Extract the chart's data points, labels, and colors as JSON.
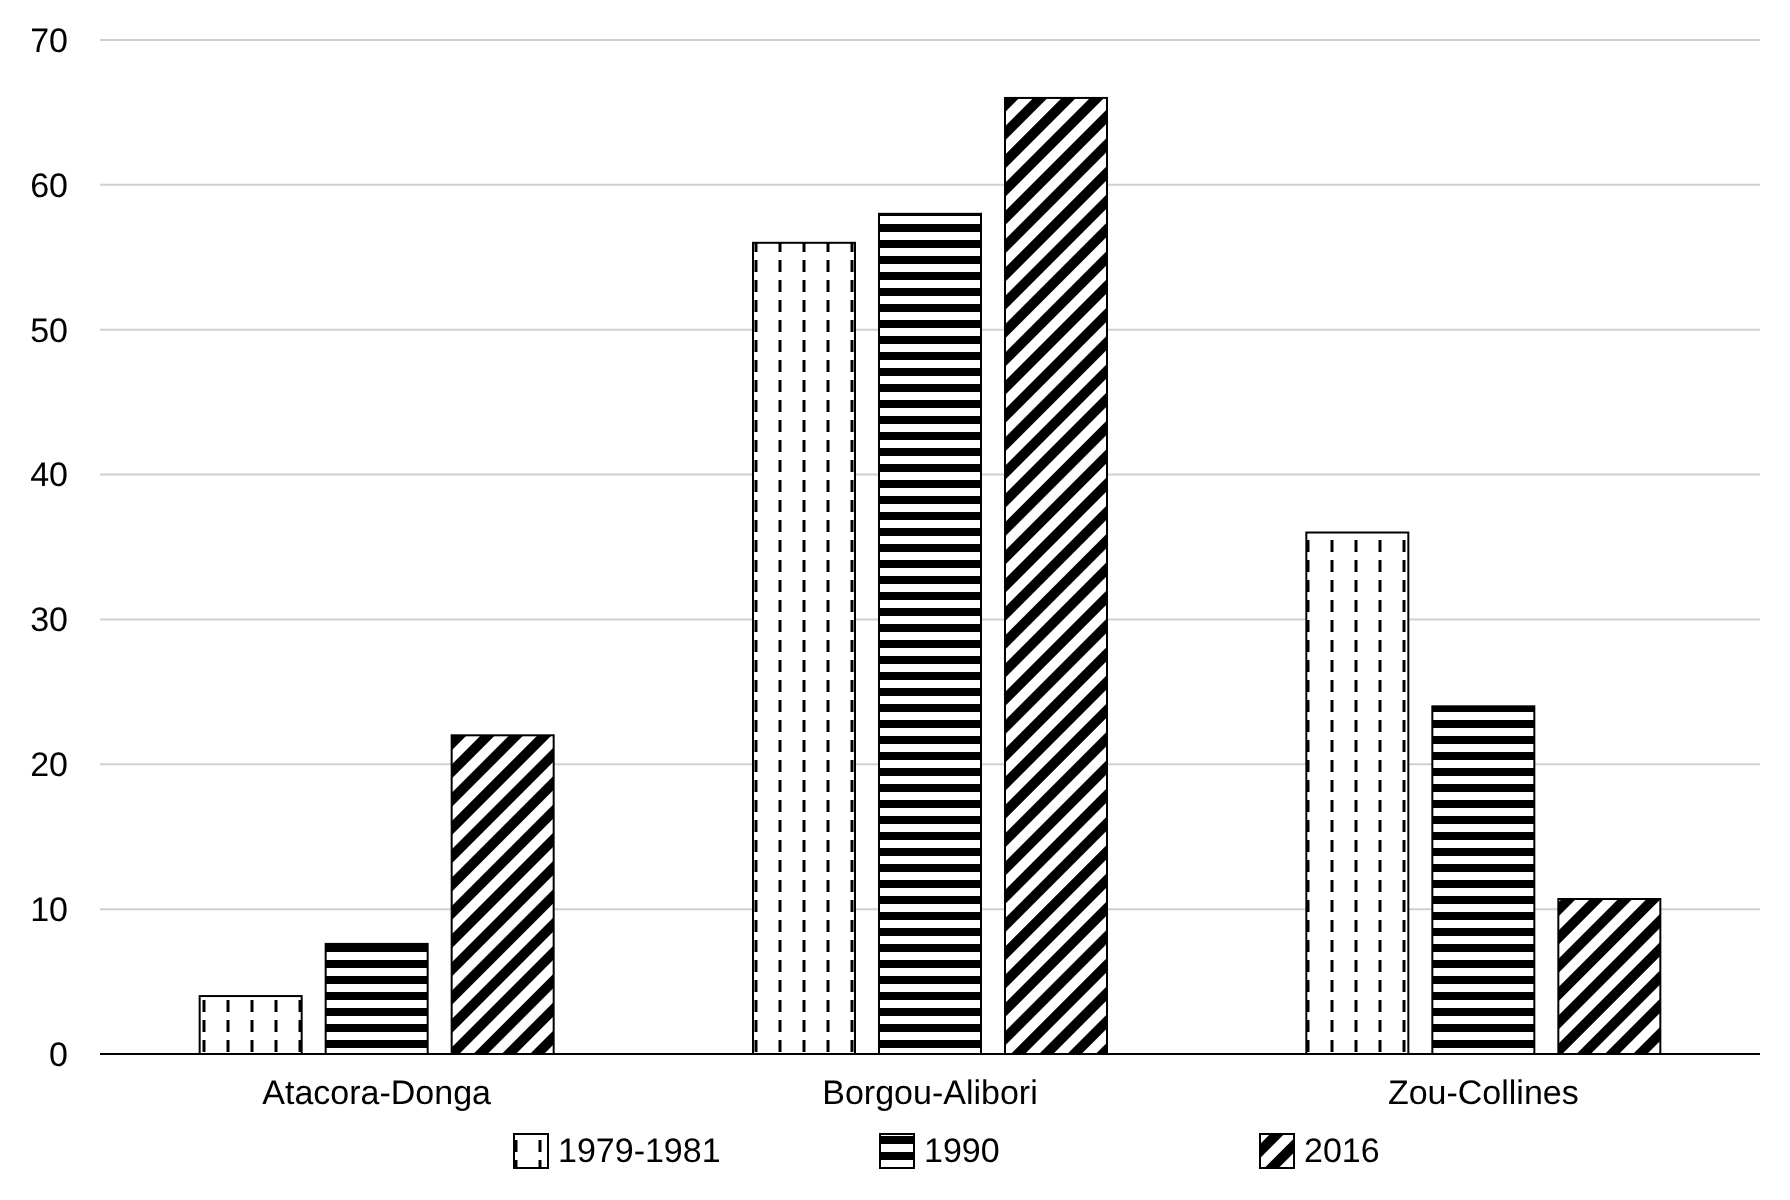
{
  "chart_data": {
    "type": "bar",
    "categories": [
      "Atacora-Donga",
      "Borgou-Alibori",
      "Zou-Collines"
    ],
    "series": [
      {
        "name": "1979-1981",
        "color": "#000000",
        "values": [
          4,
          56,
          36
        ]
      },
      {
        "name": "1990",
        "color": "#000000",
        "values": [
          7.6,
          58,
          24
        ]
      },
      {
        "name": "2016",
        "color": "#000000",
        "values": [
          22,
          66,
          10.7
        ]
      }
    ],
    "ylim": [
      0,
      70
    ],
    "yticks": [
      0,
      10,
      20,
      30,
      40,
      50,
      60,
      70
    ],
    "grid": "y",
    "legend": "bottom"
  }
}
